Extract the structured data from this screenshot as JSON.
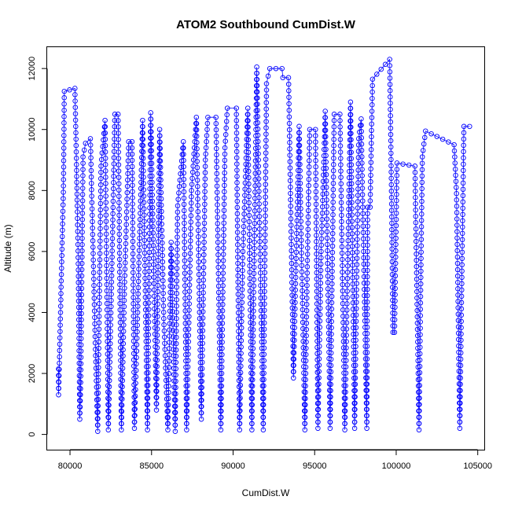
{
  "chart_data": {
    "type": "line",
    "title": "ATOM2 Southbound CumDist.W",
    "xlabel": "CumDist.W",
    "ylabel": "Altitude (m)",
    "xlim": [
      78600,
      105400
    ],
    "ylim": [
      -500,
      12700
    ],
    "xticks": [
      80000,
      85000,
      90000,
      95000,
      100000,
      105000
    ],
    "yticks": [
      0,
      2000,
      4000,
      6000,
      8000,
      10000,
      12000
    ],
    "grid": false,
    "legend": "none",
    "series_color": "#0000ff",
    "markers": "open-circle",
    "knots": [
      [
        79300,
        2150
      ],
      [
        79300,
        1300
      ],
      [
        79600,
        8150
      ],
      [
        79650,
        11250
      ],
      [
        80300,
        11350
      ],
      [
        80400,
        8850
      ],
      [
        80450,
        7300
      ],
      [
        80500,
        5800
      ],
      [
        80600,
        500
      ],
      [
        80650,
        1500
      ],
      [
        80800,
        9100
      ],
      [
        80950,
        9550
      ],
      [
        81250,
        9700
      ],
      [
        81550,
        3000
      ],
      [
        81700,
        100
      ],
      [
        81800,
        4500
      ],
      [
        81900,
        8800
      ],
      [
        82150,
        10300
      ],
      [
        82350,
        150
      ],
      [
        82550,
        5000
      ],
      [
        82750,
        10500
      ],
      [
        82950,
        10500
      ],
      [
        83150,
        150
      ],
      [
        83350,
        5000
      ],
      [
        83600,
        9600
      ],
      [
        83800,
        9600
      ],
      [
        83950,
        200
      ],
      [
        84150,
        4000
      ],
      [
        84450,
        10300
      ],
      [
        84750,
        150
      ],
      [
        84950,
        10550
      ],
      [
        85300,
        800
      ],
      [
        85500,
        10000
      ],
      [
        85750,
        3800
      ],
      [
        86000,
        150
      ],
      [
        86200,
        6300
      ],
      [
        86450,
        100
      ],
      [
        86600,
        7500
      ],
      [
        86950,
        9600
      ],
      [
        87150,
        150
      ],
      [
        87450,
        8000
      ],
      [
        87750,
        10400
      ],
      [
        88050,
        500
      ],
      [
        88300,
        9000
      ],
      [
        88450,
        10400
      ],
      [
        88950,
        10400
      ],
      [
        89250,
        150
      ],
      [
        89500,
        9400
      ],
      [
        89650,
        10700
      ],
      [
        90200,
        10700
      ],
      [
        90300,
        5000
      ],
      [
        90400,
        150
      ],
      [
        90600,
        6000
      ],
      [
        90900,
        10700
      ],
      [
        91150,
        150
      ],
      [
        91450,
        12050
      ],
      [
        91550,
        9000
      ],
      [
        91850,
        150
      ],
      [
        92050,
        11500
      ],
      [
        92250,
        12000
      ],
      [
        93000,
        12000
      ],
      [
        93050,
        11700
      ],
      [
        93400,
        11700
      ],
      [
        93450,
        10200
      ],
      [
        93700,
        1850
      ],
      [
        94050,
        10100
      ],
      [
        94400,
        150
      ],
      [
        94550,
        5500
      ],
      [
        94700,
        10000
      ],
      [
        95050,
        10000
      ],
      [
        95200,
        200
      ],
      [
        95400,
        6000
      ],
      [
        95650,
        10600
      ],
      [
        95950,
        200
      ],
      [
        96200,
        10500
      ],
      [
        96550,
        10500
      ],
      [
        96850,
        150
      ],
      [
        97200,
        10900
      ],
      [
        97450,
        200
      ],
      [
        97700,
        9700
      ],
      [
        97850,
        10350
      ],
      [
        98200,
        200
      ],
      [
        98250,
        7450
      ],
      [
        98400,
        7450
      ],
      [
        98550,
        11650
      ],
      [
        99600,
        12300
      ],
      [
        99700,
        8400
      ],
      [
        99800,
        3350
      ],
      [
        99900,
        3350
      ],
      [
        100050,
        8900
      ],
      [
        101150,
        8800
      ],
      [
        101400,
        150
      ],
      [
        101600,
        9100
      ],
      [
        101800,
        9950
      ],
      [
        103550,
        9500
      ],
      [
        103700,
        7900
      ],
      [
        103900,
        200
      ],
      [
        104150,
        10100
      ],
      [
        104500,
        10100
      ]
    ]
  }
}
